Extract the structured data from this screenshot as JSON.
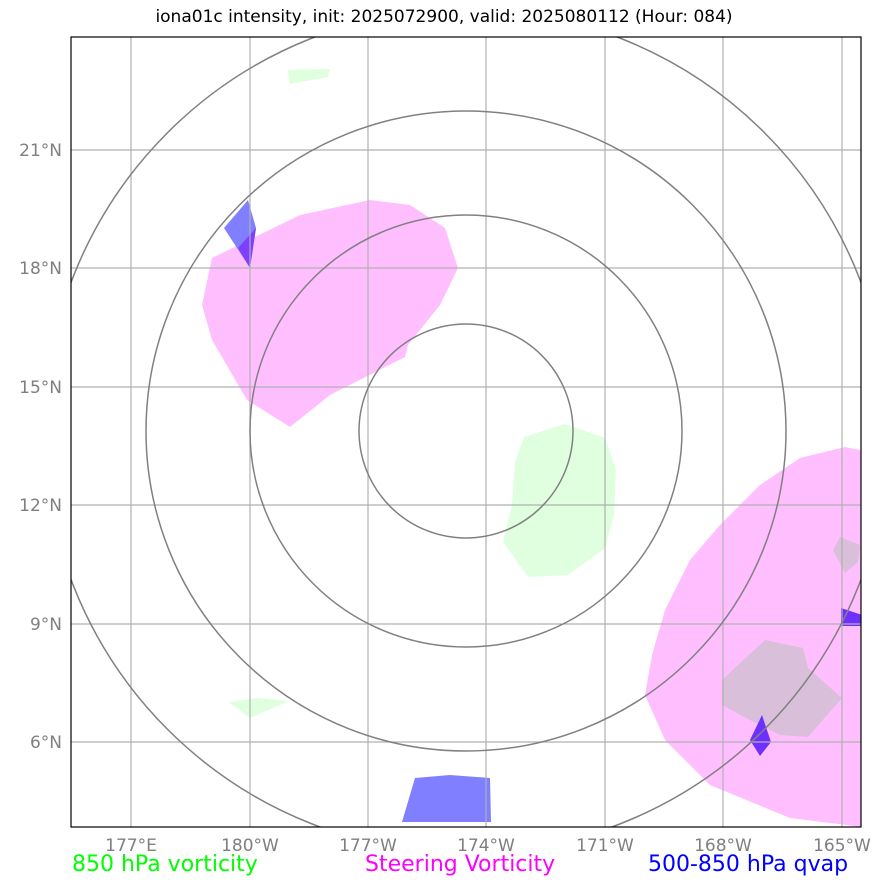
{
  "title": "iona01c intensity, init: 2025072900, valid: 2025080112 (Hour: 084)",
  "map": {
    "lat_labels": [
      "21°N",
      "18°N",
      "15°N",
      "12°N",
      "9°N",
      "6°N"
    ],
    "lon_labels": [
      "177°E",
      "180°W",
      "177°W",
      "174°W",
      "171°W",
      "168°W",
      "165°W"
    ]
  },
  "legend": {
    "vort850": "850 hPa vorticity",
    "steering": "Steering Vorticity",
    "qvap": "500-850 hPa qvap"
  },
  "colors": {
    "vort850": "#00ff00",
    "steering": "#ff00ff",
    "qvap": "#0000ff",
    "rings": "#808080"
  }
}
